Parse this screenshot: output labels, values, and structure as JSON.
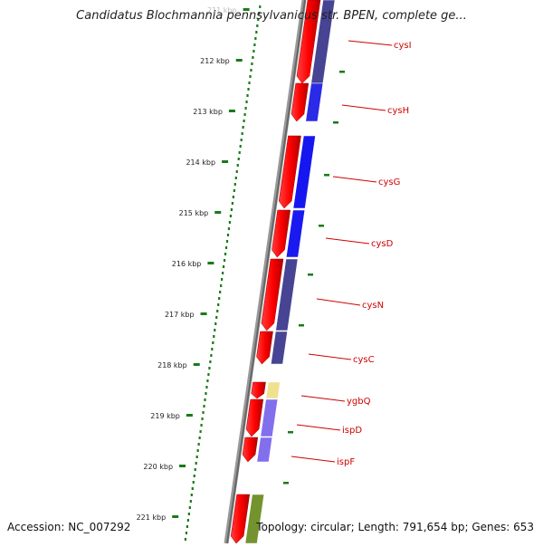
{
  "title": "Candidatus Blochmannia pennsylvanicus str. BPEN, complete ge...",
  "footer": {
    "accession": "Accession: NC_007292",
    "summary": "Topology: circular; Length: 791,654 bp; Genes: 653"
  },
  "ruler": {
    "labels": [
      "211 kbp",
      "212 kbp",
      "213 kbp",
      "214 kbp",
      "215 kbp",
      "216 kbp",
      "217 kbp",
      "218 kbp",
      "219 kbp",
      "220 kbp",
      "221 kbp"
    ]
  },
  "genes": [
    {
      "name": "cysI",
      "color": "#e00000",
      "cog_color": "#3d3a8e"
    },
    {
      "name": "cysH",
      "color": "#e00000",
      "cog_color": "#1f1fe6"
    },
    {
      "name": "cysG",
      "color": "#e00000",
      "cog_color": "#0a0af0"
    },
    {
      "name": "cysD",
      "color": "#e00000",
      "cog_color": "#0d0df0"
    },
    {
      "name": "cysN",
      "color": "#e00000",
      "cog_color": "#3d3a8e"
    },
    {
      "name": "cysC",
      "color": "#e00000",
      "cog_color": "#3d3a8e"
    },
    {
      "name": "ygbQ",
      "color": "#e00000",
      "cog_color": "#f0e08a"
    },
    {
      "name": "ispD",
      "color": "#e00000",
      "cog_color": "#7b68ee"
    },
    {
      "name": "ispF",
      "color": "#e00000",
      "cog_color": "#7b68ee"
    },
    {
      "name": "",
      "color": "#e00000",
      "cog_color": "#6b8e23"
    }
  ],
  "colors": {
    "gene_label": "#d00000",
    "ruler_dots": "#1a7a1a",
    "backbone": "#808080"
  }
}
